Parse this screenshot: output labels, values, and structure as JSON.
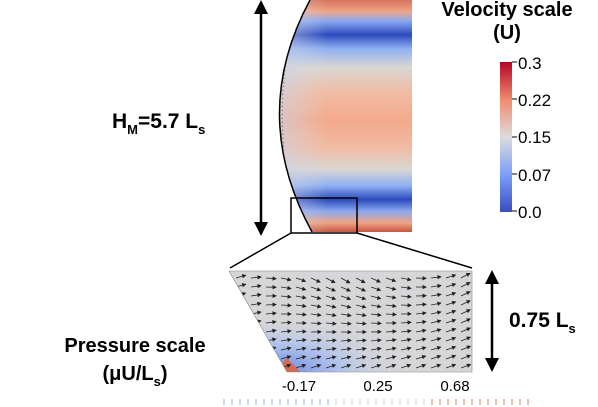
{
  "height_label": {
    "main": "H",
    "sub1": "M",
    "eq": "=5.7 L",
    "sub2": "s"
  },
  "width_label": {
    "main": "0.75 L",
    "sub": "s"
  },
  "velocity_scale": {
    "title_line1": "Velocity scale",
    "title_line2": "(U)",
    "ticks": [
      "0.3",
      "0.22",
      "0.15",
      "0.07",
      "0.0"
    ],
    "colors": [
      "#b40426",
      "#f08a6c",
      "#dddcdc",
      "#7b9ff9",
      "#3b4cc0"
    ]
  },
  "pressure_scale": {
    "title_line1": "Pressure scale",
    "title_line2_a": "(μU/L",
    "title_line2_sub": "s",
    "title_line2_b": ")",
    "ticks": [
      "-0.17",
      "0.25",
      "0.68"
    ]
  }
}
